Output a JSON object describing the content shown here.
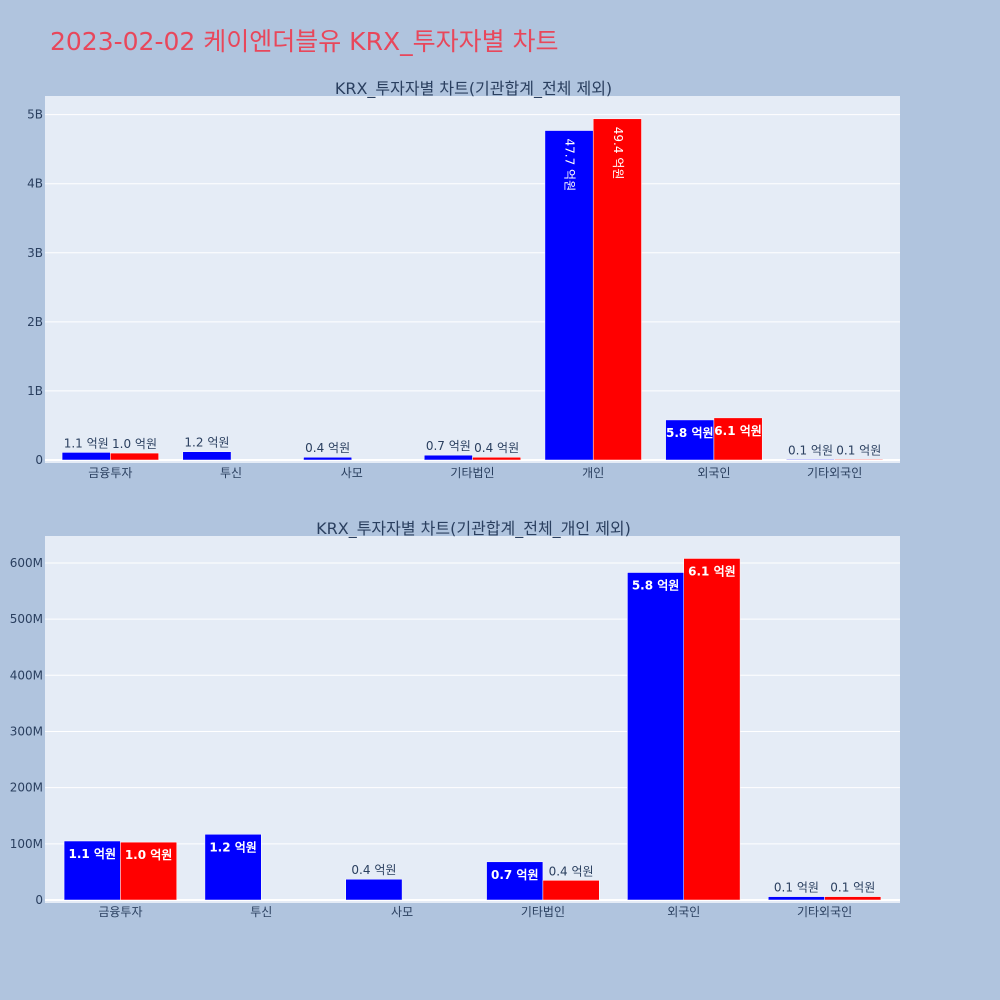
{
  "page": {
    "title": "2023-02-02 케이엔더블유 KRX_투자자별 차트",
    "background": "#b0c4de",
    "title_color": "#e8475b"
  },
  "colors": {
    "series_a": "#0000ff",
    "series_b": "#ff0000",
    "plot_bg": "#e5ecf6",
    "grid": "#ffffff"
  },
  "chart_data": [
    {
      "type": "bar",
      "title": "KRX_투자자별 차트(기관합계_전체 제외)",
      "categories": [
        "금융투자",
        "투신",
        "사모",
        "기타법인",
        "개인",
        "외국인",
        "기타외국인"
      ],
      "ylim": [
        0,
        5270000000
      ],
      "yticks": [
        0,
        1000000000,
        2000000000,
        3000000000,
        4000000000,
        5000000000
      ],
      "ytick_labels": [
        "0",
        "1B",
        "2B",
        "3B",
        "4B",
        "5B"
      ],
      "series": [
        {
          "color": "#0000ff",
          "values": [
            110000000,
            120000000,
            40000000,
            70000000,
            4770000000,
            580000000,
            10000000
          ],
          "labels": [
            "1.1 억원",
            "1.2 억원",
            "0.4 억원",
            "0.7 억원",
            "47.7 억원",
            "5.8 억원",
            "0.1 억원"
          ]
        },
        {
          "color": "#ff0000",
          "values": [
            100000000,
            null,
            null,
            40000000,
            4940000000,
            610000000,
            10000000
          ],
          "labels": [
            "1.0 억원",
            null,
            null,
            "0.4 억원",
            "49.4 억원",
            "6.1 억원",
            "0.1 억원"
          ]
        }
      ],
      "grid": true
    },
    {
      "type": "bar",
      "title": "KRX_투자자별 차트(기관합계_전체_개인 제외)",
      "categories": [
        "금융투자",
        "투신",
        "사모",
        "기타법인",
        "외국인",
        "기타외국인"
      ],
      "ylim": [
        0,
        648000000
      ],
      "yticks": [
        0,
        100000000,
        200000000,
        300000000,
        400000000,
        500000000,
        600000000
      ],
      "ytick_labels": [
        "0",
        "100M",
        "200M",
        "300M",
        "400M",
        "500M",
        "600M"
      ],
      "series": [
        {
          "color": "#0000ff",
          "values": [
            105000000,
            117000000,
            37000000,
            68000000,
            583000000,
            6000000
          ],
          "labels": [
            "1.1 억원",
            "1.2 억원",
            "0.4 억원",
            "0.7 억원",
            "5.8 억원",
            "0.1 억원"
          ]
        },
        {
          "color": "#ff0000",
          "values": [
            103000000,
            null,
            null,
            35000000,
            608000000,
            6000000
          ],
          "labels": [
            "1.0 억원",
            null,
            null,
            "0.4 억원",
            "6.1 억원",
            "0.1 억원"
          ]
        }
      ],
      "grid": true
    }
  ]
}
